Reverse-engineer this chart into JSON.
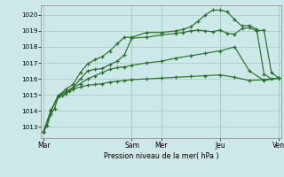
{
  "bg_color": "#cde8e8",
  "grid_color": "#a8cfc8",
  "line_color": "#2d6e2d",
  "ytick_min": 1013,
  "ytick_max": 1020,
  "xlabel": "Pression niveau de la mer( hPa )",
  "ylim": [
    1012.3,
    1020.6
  ],
  "xlim": [
    -2,
    194
  ],
  "xtick_positions": [
    0,
    72,
    96,
    144,
    192
  ],
  "xtick_labels": [
    "Mar",
    "Sam",
    "Mer",
    "Jeu",
    "Ven"
  ],
  "series1_x": [
    0,
    3,
    6,
    9,
    12,
    15,
    18,
    21,
    24,
    30,
    36,
    42,
    48,
    54,
    60,
    66,
    72,
    84,
    96,
    108,
    120,
    132,
    144,
    156,
    168,
    180,
    192
  ],
  "series1_y": [
    1012.7,
    1013.1,
    1013.8,
    1014.15,
    1014.9,
    1014.95,
    1015.05,
    1015.25,
    1015.35,
    1015.5,
    1015.6,
    1015.65,
    1015.7,
    1015.8,
    1015.85,
    1015.9,
    1015.95,
    1016.0,
    1016.05,
    1016.1,
    1016.15,
    1016.2,
    1016.25,
    1016.1,
    1015.9,
    1015.95,
    1016.05
  ],
  "series2_x": [
    0,
    6,
    12,
    18,
    24,
    30,
    36,
    42,
    48,
    54,
    60,
    66,
    72,
    84,
    96,
    108,
    120,
    132,
    144,
    156,
    168,
    180,
    192
  ],
  "series2_y": [
    1012.7,
    1014.0,
    1014.95,
    1015.2,
    1015.45,
    1015.7,
    1016.0,
    1016.2,
    1016.4,
    1016.6,
    1016.7,
    1016.75,
    1016.85,
    1017.0,
    1017.1,
    1017.3,
    1017.45,
    1017.6,
    1017.75,
    1018.0,
    1016.5,
    1015.9,
    1016.05
  ],
  "series3_x": [
    0,
    6,
    12,
    18,
    24,
    30,
    36,
    42,
    48,
    54,
    60,
    66,
    72,
    84,
    96,
    108,
    114,
    120,
    126,
    132,
    138,
    144,
    150,
    156,
    162,
    168,
    174,
    180,
    186,
    192
  ],
  "series3_y": [
    1012.7,
    1014.0,
    1014.95,
    1015.15,
    1015.45,
    1016.0,
    1016.5,
    1016.6,
    1016.65,
    1016.9,
    1017.1,
    1017.5,
    1018.55,
    1018.6,
    1018.75,
    1018.85,
    1018.9,
    1019.0,
    1019.05,
    1019.0,
    1018.95,
    1019.05,
    1018.85,
    1018.8,
    1019.15,
    1019.2,
    1019.0,
    1019.05,
    1016.4,
    1016.05
  ],
  "series4_x": [
    0,
    6,
    12,
    18,
    24,
    30,
    36,
    42,
    48,
    54,
    60,
    66,
    72,
    84,
    96,
    108,
    114,
    120,
    126,
    132,
    138,
    144,
    150,
    156,
    162,
    168,
    174,
    180,
    186,
    192
  ],
  "series4_y": [
    1012.7,
    1014.05,
    1014.95,
    1015.35,
    1015.65,
    1016.4,
    1016.95,
    1017.2,
    1017.4,
    1017.75,
    1018.2,
    1018.6,
    1018.6,
    1018.9,
    1018.9,
    1019.0,
    1019.1,
    1019.25,
    1019.6,
    1020.0,
    1020.3,
    1020.3,
    1020.2,
    1019.7,
    1019.3,
    1019.35,
    1019.1,
    1016.3,
    1016.0,
    1016.05
  ]
}
